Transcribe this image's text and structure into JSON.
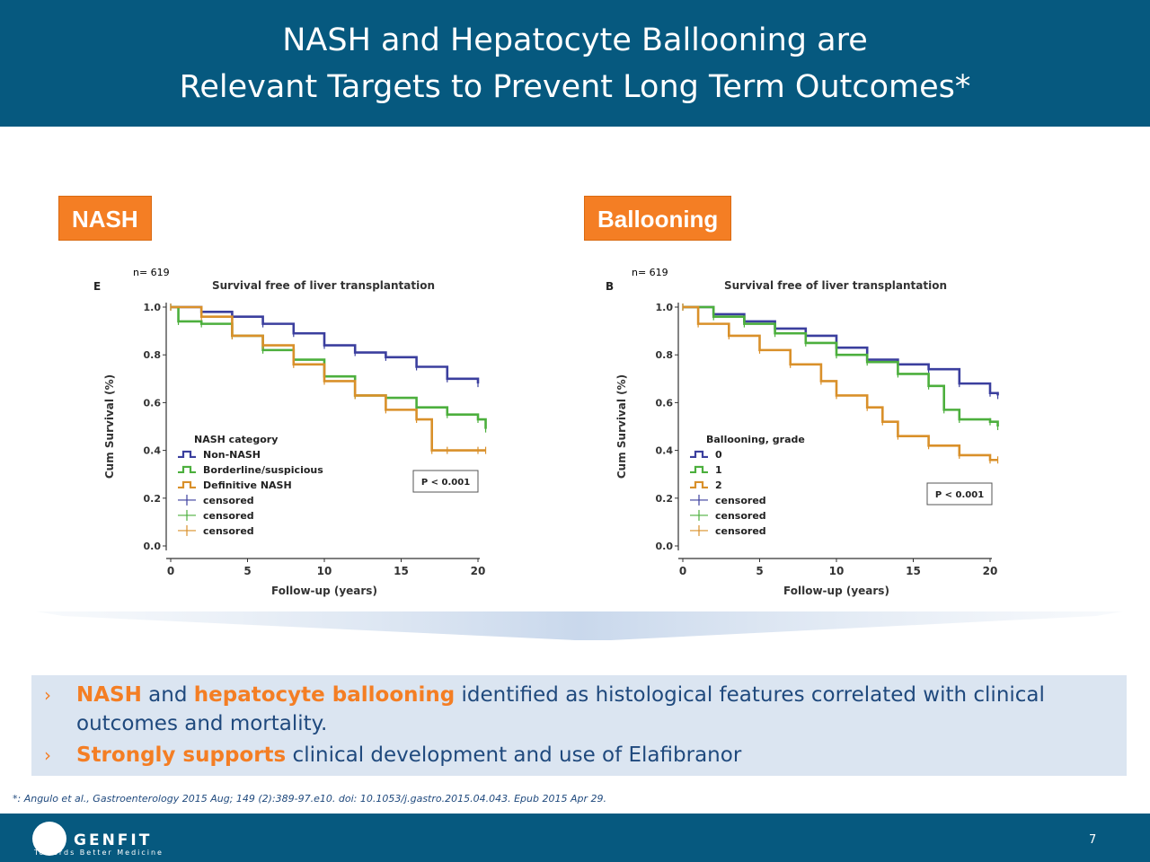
{
  "header": {
    "title_line1": "NASH and Hepatocyte Ballooning are",
    "title_line2": "Relevant Targets to Prevent Long Term Outcomes*"
  },
  "tags": {
    "left": "NASH",
    "right": "Ballooning"
  },
  "colors": {
    "header_bg": "#06597f",
    "accent_orange": "#f47e24",
    "text_navy": "#1f497d",
    "series_blue": "#3b3f9e",
    "series_green": "#4caf3d",
    "series_orange": "#d9902a",
    "bullet_bg": "#dbe5f1"
  },
  "chart_data": [
    {
      "type": "line",
      "panel_label": "E",
      "n_label": "n= 619",
      "title": "Survival free of liver transplantation",
      "xlabel": "Follow-up (years)",
      "ylabel": "Cum Survival (%)",
      "xlim": [
        0,
        20
      ],
      "ylim": [
        0,
        1
      ],
      "x_ticks": [
        0,
        5,
        10,
        15,
        20
      ],
      "x_tick_labels": [
        "0",
        "5",
        "10",
        "15",
        "20"
      ],
      "y_ticks": [
        0.0,
        0.2,
        0.4,
        0.6,
        0.8,
        1.0
      ],
      "y_tick_labels": [
        "0.0",
        "0.2",
        "0.4",
        "0.6",
        "0.8",
        "1.0"
      ],
      "legend_title": "NASH category",
      "legend_placement": "bottom-left",
      "legend": [
        "Non-NASH",
        "Borderline/suspicious",
        "Definitive NASH",
        "censored",
        "censored",
        "censored"
      ],
      "annotation": "P < 0.001",
      "series": [
        {
          "name": "Non-NASH",
          "color": "#3b3f9e",
          "x": [
            0,
            2,
            4,
            6,
            8,
            10,
            12,
            14,
            16,
            18,
            20
          ],
          "y": [
            1.0,
            0.98,
            0.96,
            0.93,
            0.89,
            0.84,
            0.81,
            0.79,
            0.75,
            0.7,
            0.68
          ]
        },
        {
          "name": "Borderline/suspicious",
          "color": "#4caf3d",
          "x": [
            0,
            0.5,
            2,
            4,
            6,
            8,
            10,
            12,
            14,
            16,
            18,
            20,
            20.5
          ],
          "y": [
            1.0,
            0.94,
            0.93,
            0.88,
            0.82,
            0.78,
            0.71,
            0.63,
            0.62,
            0.58,
            0.55,
            0.53,
            0.49
          ]
        },
        {
          "name": "Definitive NASH",
          "color": "#d9902a",
          "x": [
            0,
            2,
            4,
            6,
            8,
            10,
            12,
            14,
            16,
            17,
            18,
            20,
            20.5
          ],
          "y": [
            1.0,
            0.96,
            0.88,
            0.84,
            0.76,
            0.69,
            0.63,
            0.57,
            0.53,
            0.4,
            0.4,
            0.4,
            0.4
          ]
        }
      ]
    },
    {
      "type": "line",
      "panel_label": "B",
      "n_label": "n= 619",
      "title": "Survival free of liver transplantation",
      "xlabel": "Follow-up (years)",
      "ylabel": "Cum Survival (%)",
      "xlim": [
        0,
        20
      ],
      "ylim": [
        0,
        1
      ],
      "x_ticks": [
        0,
        5,
        10,
        15,
        20
      ],
      "x_tick_labels": [
        "0",
        "5",
        "10",
        "15",
        "20"
      ],
      "y_ticks": [
        0.0,
        0.2,
        0.4,
        0.6,
        0.8,
        1.0
      ],
      "y_tick_labels": [
        "0.0",
        "0.2",
        "0.4",
        "0.6",
        "0.8",
        "1.0"
      ],
      "legend_title": "Ballooning, grade",
      "legend_placement": "bottom-left",
      "legend": [
        "0",
        "1",
        "2",
        "censored",
        "censored",
        "censored"
      ],
      "annotation": "P < 0.001",
      "series": [
        {
          "name": "0",
          "color": "#3b3f9e",
          "x": [
            0,
            2,
            4,
            6,
            8,
            10,
            12,
            14,
            16,
            18,
            20,
            20.5
          ],
          "y": [
            1.0,
            0.97,
            0.94,
            0.91,
            0.88,
            0.83,
            0.78,
            0.76,
            0.74,
            0.68,
            0.64,
            0.63
          ]
        },
        {
          "name": "1",
          "color": "#4caf3d",
          "x": [
            0,
            2,
            4,
            6,
            8,
            10,
            12,
            14,
            16,
            17,
            18,
            20,
            20.5
          ],
          "y": [
            1.0,
            0.96,
            0.93,
            0.89,
            0.85,
            0.8,
            0.77,
            0.72,
            0.67,
            0.57,
            0.53,
            0.52,
            0.5
          ]
        },
        {
          "name": "2",
          "color": "#d9902a",
          "x": [
            0,
            1,
            3,
            5,
            7,
            9,
            10,
            12,
            13,
            14,
            16,
            18,
            20,
            20.5
          ],
          "y": [
            1.0,
            0.93,
            0.88,
            0.82,
            0.76,
            0.69,
            0.63,
            0.58,
            0.52,
            0.46,
            0.42,
            0.38,
            0.36,
            0.36
          ]
        }
      ]
    }
  ],
  "bullets": [
    {
      "parts": [
        {
          "text": "NASH",
          "hl": true
        },
        {
          "text": " and ",
          "hl": false
        },
        {
          "text": "hepatocyte ballooning",
          "hl": true
        },
        {
          "text": " identified as histological features correlated with clinical",
          "hl": false
        }
      ],
      "cont": "outcomes and mortality."
    },
    {
      "parts": [
        {
          "text": "Strongly supports",
          "hl": true
        },
        {
          "text": " clinical development and use of Elafibranor",
          "hl": false
        }
      ],
      "cont": ""
    }
  ],
  "bullet_marker": "›",
  "reference": "*: Angulo et al., Gastroenterology 2015 Aug; 149 (2):389-97.e10. doi: 10.1053/j.gastro.2015.04.043. Epub 2015 Apr 29.",
  "footer": {
    "logo": "GENFIT",
    "tagline": "Towards Better Medicine",
    "page_number": "7"
  }
}
